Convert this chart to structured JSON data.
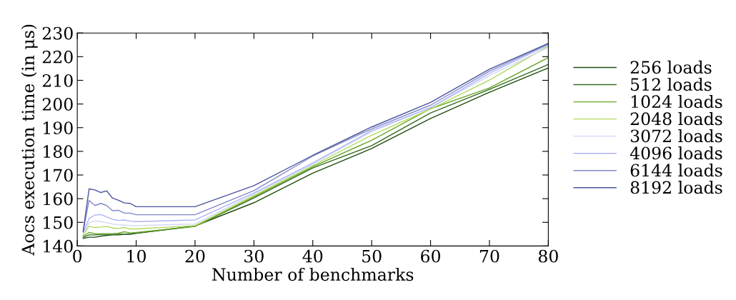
{
  "chart_data": {
    "type": "line",
    "xlabel": "Number of benchmarks",
    "ylabel": "Aocs execution time (in μs)",
    "x": [
      1,
      2,
      3,
      4,
      5,
      6,
      7,
      8,
      9,
      10,
      20,
      30,
      40,
      50,
      60,
      70,
      80
    ],
    "xlim": [
      0,
      80
    ],
    "xticks": [
      0,
      10,
      20,
      30,
      40,
      50,
      60,
      70,
      80
    ],
    "ylim": [
      140,
      230
    ],
    "yticks": [
      140,
      150,
      160,
      170,
      180,
      190,
      200,
      210,
      220,
      230
    ],
    "grid": false,
    "legend": "right",
    "marker": "none",
    "line_style": "solid",
    "series": [
      {
        "name": "256 loads",
        "color": "#1f4d0c",
        "values": [
          143.2,
          143.7,
          143.7,
          144.2,
          144.5,
          144.7,
          144.7,
          144.9,
          144.9,
          145.4,
          148.5,
          158.3,
          170.8,
          181.2,
          193.9,
          205.0,
          215.2
        ]
      },
      {
        "name": "512 loads",
        "color": "#336b1f",
        "values": [
          143.7,
          144.7,
          144.7,
          144.9,
          144.9,
          144.9,
          145.0,
          145.0,
          145.2,
          145.4,
          148.3,
          160.3,
          173.0,
          182.4,
          196.2,
          206.2,
          216.7
        ]
      },
      {
        "name": "1024 loads",
        "color": "#6aa82a",
        "values": [
          144.2,
          145.7,
          145.2,
          145.2,
          145.2,
          145.2,
          145.4,
          146.0,
          145.5,
          145.7,
          148.3,
          160.8,
          173.5,
          184.7,
          198.0,
          206.8,
          219.6
        ]
      },
      {
        "name": "2048 loads",
        "color": "#b2d95a",
        "values": [
          144.7,
          148.3,
          147.8,
          148.0,
          148.3,
          147.6,
          147.4,
          147.8,
          147.2,
          147.2,
          148.6,
          161.3,
          174.0,
          186.8,
          197.9,
          210.1,
          224.5
        ]
      },
      {
        "name": "3072 loads",
        "color": "#d2d6fa",
        "values": [
          145.2,
          149.8,
          150.6,
          150.3,
          149.8,
          149.3,
          149.0,
          148.8,
          148.6,
          148.6,
          149.3,
          162.0,
          174.6,
          188.3,
          198.5,
          212.0,
          224.0
        ]
      },
      {
        "name": "4096 loads",
        "color": "#aeb3f5",
        "values": [
          145.7,
          151.6,
          153.1,
          153.3,
          152.3,
          151.3,
          150.8,
          151.0,
          150.5,
          150.3,
          151.0,
          162.4,
          175.1,
          188.8,
          198.5,
          213.0,
          225.0
        ]
      },
      {
        "name": "6144 loads",
        "color": "#8088c8",
        "values": [
          146.2,
          159.3,
          157.1,
          158.0,
          157.1,
          154.9,
          155.1,
          153.9,
          153.9,
          153.2,
          153.2,
          163.4,
          178.0,
          189.5,
          199.5,
          213.9,
          225.4
        ]
      },
      {
        "name": "8192 loads",
        "color": "#4b549c",
        "values": [
          146.2,
          164.1,
          163.7,
          162.6,
          163.3,
          160.2,
          159.3,
          158.2,
          158.0,
          156.6,
          156.6,
          165.5,
          178.3,
          190.3,
          200.7,
          214.7,
          225.6
        ]
      }
    ]
  }
}
